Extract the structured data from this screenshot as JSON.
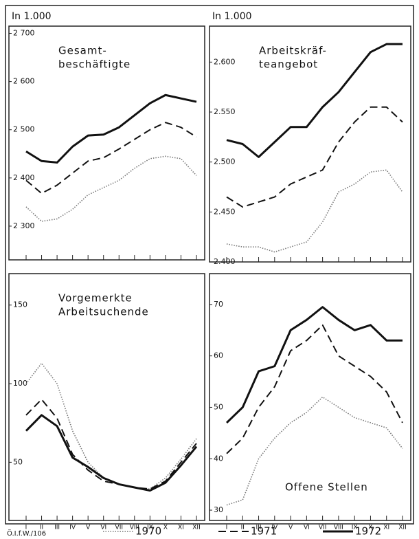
{
  "chart_data": [
    {
      "type": "line",
      "unit": "In 1.000",
      "title": [
        "Gesamt-",
        "beschäftigte"
      ],
      "ylim": [
        2230,
        2715
      ],
      "yticks": [
        {
          "value": 2300,
          "label": "2 300"
        },
        {
          "value": 2400,
          "label": "2 400"
        },
        {
          "value": 2500,
          "label": "2 500"
        },
        {
          "value": 2600,
          "label": "2 600"
        },
        {
          "value": 2700,
          "label": "2 700"
        }
      ],
      "series": [
        {
          "values": [
            2340,
            2310,
            2315,
            2335,
            2365,
            2380,
            2395,
            2420,
            2440,
            2445,
            2440,
            2405
          ]
        },
        {
          "values": [
            2395,
            2368,
            2385,
            2410,
            2435,
            2442,
            2460,
            2480,
            2500,
            2515,
            2505,
            2485
          ]
        },
        {
          "values": [
            2455,
            2435,
            2432,
            2465,
            2488,
            2490,
            2505,
            2530,
            2555,
            2572,
            2565,
            2558
          ]
        }
      ]
    },
    {
      "type": "line",
      "unit": "In 1.000",
      "title": [
        "Arbeitskräf-",
        "teangebot"
      ],
      "ylim": [
        2400,
        2636
      ],
      "yticks": [
        {
          "value": 2400,
          "label": "2.400"
        },
        {
          "value": 2450,
          "label": "2.450"
        },
        {
          "value": 2500,
          "label": "2.500"
        },
        {
          "value": 2550,
          "label": "2.550"
        },
        {
          "value": 2600,
          "label": "2.600"
        }
      ],
      "series": [
        {
          "values": [
            2418,
            2415,
            2415,
            2410,
            2415,
            2420,
            2440,
            2470,
            2478,
            2490,
            2492,
            2470
          ]
        },
        {
          "values": [
            2465,
            2455,
            2460,
            2465,
            2478,
            2485,
            2492,
            2520,
            2540,
            2555,
            2555,
            2540
          ]
        },
        {
          "values": [
            2522,
            2518,
            2505,
            2520,
            2535,
            2535,
            2555,
            2570,
            2590,
            2610,
            2618,
            2618
          ]
        }
      ]
    },
    {
      "type": "line",
      "title": [
        "Vorgemerkte",
        "Arbeitsuchende"
      ],
      "categories": [
        "I",
        "II",
        "III",
        "IV",
        "V",
        "VI",
        "VII",
        "VIII",
        "IX",
        "X",
        "XI",
        "XII"
      ],
      "ylim": [
        13,
        170
      ],
      "yticks": [
        50,
        100,
        150
      ],
      "series": [
        {
          "values": [
            100,
            113,
            100,
            70,
            50,
            40,
            36,
            34,
            33,
            40,
            52,
            65
          ]
        },
        {
          "values": [
            80,
            90,
            78,
            55,
            45,
            38,
            36,
            34,
            33,
            38,
            50,
            62
          ]
        },
        {
          "values": [
            70,
            80,
            73,
            53,
            47,
            40,
            36,
            34,
            32,
            37,
            48,
            60
          ]
        }
      ]
    },
    {
      "type": "line",
      "title": [
        "Offene Stellen"
      ],
      "title_position": "bottom",
      "categories": [
        "I",
        "II",
        "III",
        "IV",
        "V",
        "VI",
        "VII",
        "VIII",
        "IX",
        "X",
        "XI",
        "XII"
      ],
      "ylim": [
        28,
        76
      ],
      "yticks": [
        30,
        40,
        50,
        60,
        70
      ],
      "series": [
        {
          "values": [
            31,
            32,
            40,
            44,
            47,
            49,
            52,
            50,
            48,
            47,
            46,
            42
          ]
        },
        {
          "values": [
            41,
            44,
            50,
            54,
            61,
            63,
            66,
            60,
            58,
            56,
            53,
            47
          ]
        },
        {
          "values": [
            47,
            50,
            57,
            58,
            65,
            67,
            69.5,
            67,
            65,
            66,
            63,
            63
          ]
        }
      ]
    }
  ],
  "legend": [
    {
      "name": "1970",
      "style": "dotted",
      "color": "#777777"
    },
    {
      "name": "1971",
      "style": "dashed",
      "color": "#111111"
    },
    {
      "name": "1972",
      "style": "solid",
      "color": "#111111"
    }
  ],
  "source": "Ö.I.f.W./106"
}
